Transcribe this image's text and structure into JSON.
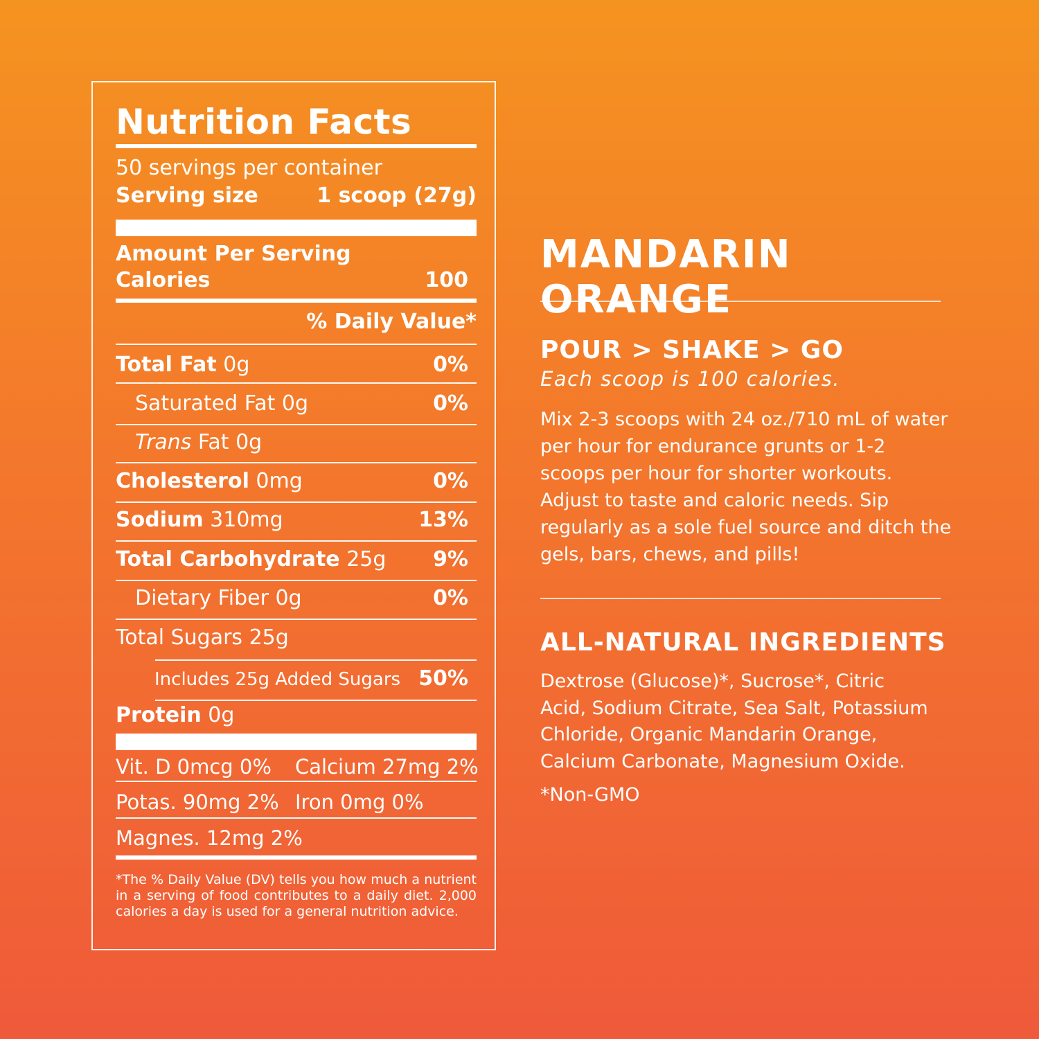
{
  "nutrition": {
    "title": "Nutrition Facts",
    "servings_per_container": "50 servings per container",
    "serving_size_label": "Serving size",
    "serving_size_value": "1 scoop (27g)",
    "amount_per_serving": "Amount Per Serving",
    "calories_label": "Calories",
    "calories_value": "100",
    "daily_value_header": "% Daily Value*",
    "rows": [
      {
        "bold": "Total Fat",
        "amount": "0g",
        "dv": "0%"
      },
      {
        "bold": "",
        "amount": "Saturated Fat 0g",
        "dv": "0%"
      },
      {
        "italic": "Trans",
        "amount": "Fat 0g",
        "dv": ""
      },
      {
        "bold": "Cholesterol",
        "amount": "0mg",
        "dv": "0%"
      },
      {
        "bold": "Sodium",
        "amount": "310mg",
        "dv": "13%"
      },
      {
        "bold": "Total Carbohydrate",
        "amount": "25g",
        "dv": "9%"
      },
      {
        "bold": "",
        "amount": "Dietary Fiber 0g",
        "dv": "0%"
      },
      {
        "bold": "",
        "amount": "Total Sugars 25g",
        "dv": ""
      },
      {
        "bold": "",
        "amount": "Includes 25g Added Sugars",
        "dv": "50%"
      },
      {
        "bold": "Protein",
        "amount": "0g",
        "dv": ""
      }
    ],
    "vitamins": {
      "vit_d": "Vit. D 0mcg 0%",
      "calcium": "Calcium 27mg 2%",
      "potassium": "Potas.  90mg 2%",
      "iron": "Iron 0mg 0%",
      "magnesium": "Magnes. 12mg 2%"
    },
    "footnote": "*The % Daily Value (DV) tells you how much a nutrient in a serving of food contributes to a daily diet. 2,000 calories a day is used for a general nutrition advice."
  },
  "product": {
    "title": "MANDARIN ORANGE",
    "directions_heading": "POUR > SHAKE > GO",
    "directions_subheading": "Each scoop is 100 calories.",
    "directions_text": "Mix 2-3 scoops with 24 oz./710 mL of water per hour for endurance grunts or 1-2 scoops per hour for shorter workouts. Adjust to taste and caloric needs. Sip regularly as a sole fuel source and ditch the gels, bars, chews, and pills!",
    "ingredients_heading": "ALL-NATURAL INGREDIENTS",
    "ingredients_text": "Dextrose (Glucose)*, Sucrose*, Citric Acid, Sodium Citrate, Sea Salt, Potassium Chloride, Organic Mandarin Orange, Calcium Carbonate, Magnesium Oxide.",
    "non_gmo": "*Non-GMO"
  },
  "colors": {
    "gradient_top": "#f59320",
    "gradient_bottom": "#ef5a3a",
    "text": "#ffffff"
  }
}
